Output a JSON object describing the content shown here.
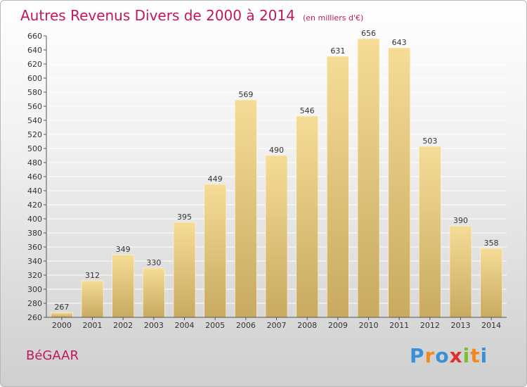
{
  "title": "Autres Revenus Divers de 2000 à 2014",
  "subtitle": "(en milliers d'€)",
  "commune": "BéGAAR",
  "logo": {
    "letters": [
      "P",
      "r",
      "o",
      "x",
      "i",
      "t",
      "i"
    ],
    "colors": [
      "#3a8fd6",
      "#f08a1c",
      "#3a8fd6",
      "#e0322b",
      "#7cbf2e",
      "#f08a1c",
      "#3a8fd6"
    ]
  },
  "colors": {
    "bar_top": "#f5dc97",
    "bar_bottom": "#c8aa60",
    "title": "#c2185b",
    "grid": "#ffffff"
  },
  "chart_data": {
    "type": "bar",
    "categories": [
      "2000",
      "2001",
      "2002",
      "2003",
      "2004",
      "2005",
      "2006",
      "2007",
      "2008",
      "2009",
      "2010",
      "2011",
      "2012",
      "2013",
      "2014"
    ],
    "values": [
      267,
      312,
      349,
      330,
      395,
      449,
      569,
      490,
      546,
      631,
      656,
      643,
      503,
      390,
      358
    ],
    "ylim": [
      260,
      660
    ],
    "yticks": [
      260,
      280,
      300,
      320,
      340,
      360,
      380,
      400,
      420,
      440,
      460,
      480,
      500,
      520,
      540,
      560,
      580,
      600,
      620,
      640,
      660
    ],
    "grid": true,
    "data_labels": true
  }
}
